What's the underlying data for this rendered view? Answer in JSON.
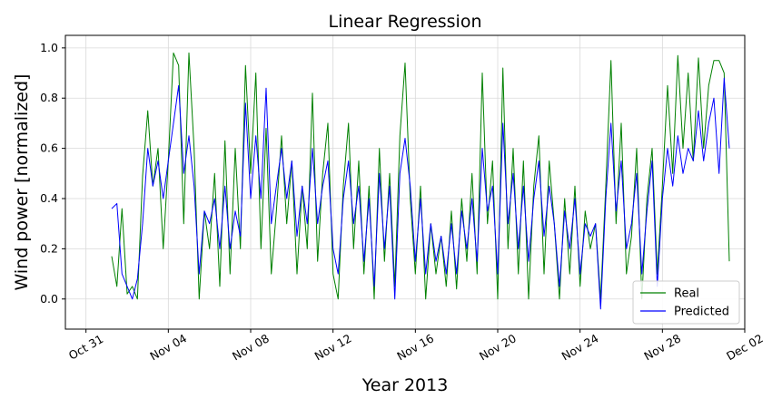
{
  "chart_data": {
    "type": "line",
    "title": "Linear Regression",
    "xlabel": "Year 2013",
    "ylabel": "Wind power [normalized]",
    "xlim": [
      "2013-10-30T00:00",
      "2013-12-02T00:00"
    ],
    "ylim": [
      -0.12,
      1.05
    ],
    "grid": true,
    "legend_position": "bottom-right",
    "x_ticks": [
      {
        "date": "2013-10-31",
        "label": "Oct 31"
      },
      {
        "date": "2013-11-04",
        "label": "Nov 04"
      },
      {
        "date": "2013-11-08",
        "label": "Nov 08"
      },
      {
        "date": "2013-11-12",
        "label": "Nov 12"
      },
      {
        "date": "2013-11-16",
        "label": "Nov 16"
      },
      {
        "date": "2013-11-20",
        "label": "Nov 20"
      },
      {
        "date": "2013-11-24",
        "label": "Nov 24"
      },
      {
        "date": "2013-11-28",
        "label": "Nov 28"
      },
      {
        "date": "2013-12-02",
        "label": "Dec 02"
      }
    ],
    "y_ticks": [
      {
        "value": 0.0,
        "label": "0.0"
      },
      {
        "value": 0.2,
        "label": "0.2"
      },
      {
        "value": 0.4,
        "label": "0.4"
      },
      {
        "value": 0.6,
        "label": "0.6"
      },
      {
        "value": 0.8,
        "label": "0.8"
      },
      {
        "value": 1.0,
        "label": "1.0"
      }
    ],
    "series": [
      {
        "name": "Real",
        "color": "#008000",
        "points": [
          [
            "2013-11-01T06:00",
            0.17
          ],
          [
            "2013-11-01T12:00",
            0.05
          ],
          [
            "2013-11-01T18:00",
            0.36
          ],
          [
            "2013-11-02T00:00",
            0.02
          ],
          [
            "2013-11-02T06:00",
            0.05
          ],
          [
            "2013-11-02T12:00",
            0.0
          ],
          [
            "2013-11-02T18:00",
            0.49
          ],
          [
            "2013-11-03T00:00",
            0.75
          ],
          [
            "2013-11-03T06:00",
            0.45
          ],
          [
            "2013-11-03T12:00",
            0.6
          ],
          [
            "2013-11-03T18:00",
            0.2
          ],
          [
            "2013-11-04T00:00",
            0.55
          ],
          [
            "2013-11-04T06:00",
            0.98
          ],
          [
            "2013-11-04T12:00",
            0.93
          ],
          [
            "2013-11-04T18:00",
            0.3
          ],
          [
            "2013-11-05T00:00",
            0.98
          ],
          [
            "2013-11-05T06:00",
            0.6
          ],
          [
            "2013-11-05T12:00",
            0.0
          ],
          [
            "2013-11-05T18:00",
            0.35
          ],
          [
            "2013-11-06T00:00",
            0.2
          ],
          [
            "2013-11-06T06:00",
            0.5
          ],
          [
            "2013-11-06T12:00",
            0.05
          ],
          [
            "2013-11-06T18:00",
            0.63
          ],
          [
            "2013-11-07T00:00",
            0.1
          ],
          [
            "2013-11-07T06:00",
            0.6
          ],
          [
            "2013-11-07T12:00",
            0.2
          ],
          [
            "2013-11-07T18:00",
            0.93
          ],
          [
            "2013-11-08T00:00",
            0.5
          ],
          [
            "2013-11-08T06:00",
            0.9
          ],
          [
            "2013-11-08T12:00",
            0.2
          ],
          [
            "2013-11-08T18:00",
            0.68
          ],
          [
            "2013-11-09T00:00",
            0.1
          ],
          [
            "2013-11-09T06:00",
            0.35
          ],
          [
            "2013-11-09T12:00",
            0.65
          ],
          [
            "2013-11-09T18:00",
            0.3
          ],
          [
            "2013-11-10T00:00",
            0.55
          ],
          [
            "2013-11-10T06:00",
            0.1
          ],
          [
            "2013-11-10T12:00",
            0.45
          ],
          [
            "2013-11-10T18:00",
            0.2
          ],
          [
            "2013-11-11T00:00",
            0.82
          ],
          [
            "2013-11-11T06:00",
            0.15
          ],
          [
            "2013-11-11T12:00",
            0.5
          ],
          [
            "2013-11-11T18:00",
            0.7
          ],
          [
            "2013-11-12T00:00",
            0.1
          ],
          [
            "2013-11-12T06:00",
            0.0
          ],
          [
            "2013-11-12T12:00",
            0.45
          ],
          [
            "2013-11-12T18:00",
            0.7
          ],
          [
            "2013-11-13T00:00",
            0.2
          ],
          [
            "2013-11-13T06:00",
            0.55
          ],
          [
            "2013-11-13T12:00",
            0.1
          ],
          [
            "2013-11-13T18:00",
            0.45
          ],
          [
            "2013-11-14T00:00",
            0.0
          ],
          [
            "2013-11-14T06:00",
            0.6
          ],
          [
            "2013-11-14T12:00",
            0.15
          ],
          [
            "2013-11-14T18:00",
            0.5
          ],
          [
            "2013-11-15T00:00",
            0.05
          ],
          [
            "2013-11-15T06:00",
            0.65
          ],
          [
            "2013-11-15T12:00",
            0.94
          ],
          [
            "2013-11-15T18:00",
            0.4
          ],
          [
            "2013-11-16T00:00",
            0.1
          ],
          [
            "2013-11-16T06:00",
            0.45
          ],
          [
            "2013-11-16T12:00",
            0.0
          ],
          [
            "2013-11-16T18:00",
            0.3
          ],
          [
            "2013-11-17T00:00",
            0.1
          ],
          [
            "2013-11-17T06:00",
            0.25
          ],
          [
            "2013-11-17T12:00",
            0.05
          ],
          [
            "2013-11-17T18:00",
            0.35
          ],
          [
            "2013-11-18T00:00",
            0.04
          ],
          [
            "2013-11-18T06:00",
            0.4
          ],
          [
            "2013-11-18T12:00",
            0.15
          ],
          [
            "2013-11-18T18:00",
            0.5
          ],
          [
            "2013-11-19T00:00",
            0.1
          ],
          [
            "2013-11-19T06:00",
            0.9
          ],
          [
            "2013-11-19T12:00",
            0.3
          ],
          [
            "2013-11-19T18:00",
            0.55
          ],
          [
            "2013-11-20T00:00",
            0.0
          ],
          [
            "2013-11-20T06:00",
            0.92
          ],
          [
            "2013-11-20T12:00",
            0.2
          ],
          [
            "2013-11-20T18:00",
            0.6
          ],
          [
            "2013-11-21T00:00",
            0.1
          ],
          [
            "2013-11-21T06:00",
            0.55
          ],
          [
            "2013-11-21T12:00",
            0.0
          ],
          [
            "2013-11-21T18:00",
            0.45
          ],
          [
            "2013-11-22T00:00",
            0.65
          ],
          [
            "2013-11-22T06:00",
            0.1
          ],
          [
            "2013-11-22T12:00",
            0.55
          ],
          [
            "2013-11-22T18:00",
            0.3
          ],
          [
            "2013-11-23T00:00",
            0.0
          ],
          [
            "2013-11-23T06:00",
            0.4
          ],
          [
            "2013-11-23T12:00",
            0.1
          ],
          [
            "2013-11-23T18:00",
            0.45
          ],
          [
            "2013-11-24T00:00",
            0.05
          ],
          [
            "2013-11-24T06:00",
            0.35
          ],
          [
            "2013-11-24T12:00",
            0.2
          ],
          [
            "2013-11-24T18:00",
            0.3
          ],
          [
            "2013-11-25T00:00",
            0.0
          ],
          [
            "2013-11-25T06:00",
            0.45
          ],
          [
            "2013-11-25T12:00",
            0.95
          ],
          [
            "2013-11-25T18:00",
            0.3
          ],
          [
            "2013-11-26T00:00",
            0.7
          ],
          [
            "2013-11-26T06:00",
            0.1
          ],
          [
            "2013-11-26T12:00",
            0.25
          ],
          [
            "2013-11-26T18:00",
            0.6
          ],
          [
            "2013-11-27T00:00",
            0.0
          ],
          [
            "2013-11-27T06:00",
            0.4
          ],
          [
            "2013-11-27T12:00",
            0.6
          ],
          [
            "2013-11-27T18:00",
            0.1
          ],
          [
            "2013-11-28T00:00",
            0.45
          ],
          [
            "2013-11-28T06:00",
            0.85
          ],
          [
            "2013-11-28T12:00",
            0.5
          ],
          [
            "2013-11-28T18:00",
            0.97
          ],
          [
            "2013-11-29T00:00",
            0.6
          ],
          [
            "2013-11-29T06:00",
            0.9
          ],
          [
            "2013-11-29T12:00",
            0.55
          ],
          [
            "2013-11-29T18:00",
            0.96
          ],
          [
            "2013-11-30T00:00",
            0.6
          ],
          [
            "2013-11-30T06:00",
            0.85
          ],
          [
            "2013-11-30T12:00",
            0.95
          ],
          [
            "2013-11-30T18:00",
            0.95
          ],
          [
            "2013-12-01T00:00",
            0.9
          ],
          [
            "2013-12-01T06:00",
            0.15
          ]
        ]
      },
      {
        "name": "Predicted",
        "color": "#0000ff",
        "points": [
          [
            "2013-11-01T06:00",
            0.36
          ],
          [
            "2013-11-01T12:00",
            0.38
          ],
          [
            "2013-11-01T18:00",
            0.1
          ],
          [
            "2013-11-02T00:00",
            0.05
          ],
          [
            "2013-11-02T06:00",
            0.0
          ],
          [
            "2013-11-02T12:00",
            0.08
          ],
          [
            "2013-11-02T18:00",
            0.3
          ],
          [
            "2013-11-03T00:00",
            0.6
          ],
          [
            "2013-11-03T06:00",
            0.45
          ],
          [
            "2013-11-03T12:00",
            0.55
          ],
          [
            "2013-11-03T18:00",
            0.4
          ],
          [
            "2013-11-04T00:00",
            0.55
          ],
          [
            "2013-11-04T06:00",
            0.7
          ],
          [
            "2013-11-04T12:00",
            0.85
          ],
          [
            "2013-11-04T18:00",
            0.5
          ],
          [
            "2013-11-05T00:00",
            0.65
          ],
          [
            "2013-11-05T06:00",
            0.45
          ],
          [
            "2013-11-05T12:00",
            0.1
          ],
          [
            "2013-11-05T18:00",
            0.35
          ],
          [
            "2013-11-06T00:00",
            0.3
          ],
          [
            "2013-11-06T06:00",
            0.4
          ],
          [
            "2013-11-06T12:00",
            0.2
          ],
          [
            "2013-11-06T18:00",
            0.45
          ],
          [
            "2013-11-07T00:00",
            0.2
          ],
          [
            "2013-11-07T06:00",
            0.35
          ],
          [
            "2013-11-07T12:00",
            0.25
          ],
          [
            "2013-11-07T18:00",
            0.78
          ],
          [
            "2013-11-08T00:00",
            0.4
          ],
          [
            "2013-11-08T06:00",
            0.65
          ],
          [
            "2013-11-08T12:00",
            0.4
          ],
          [
            "2013-11-08T18:00",
            0.84
          ],
          [
            "2013-11-09T00:00",
            0.3
          ],
          [
            "2013-11-09T06:00",
            0.45
          ],
          [
            "2013-11-09T12:00",
            0.6
          ],
          [
            "2013-11-09T18:00",
            0.4
          ],
          [
            "2013-11-10T00:00",
            0.55
          ],
          [
            "2013-11-10T06:00",
            0.25
          ],
          [
            "2013-11-10T12:00",
            0.45
          ],
          [
            "2013-11-10T18:00",
            0.3
          ],
          [
            "2013-11-11T00:00",
            0.6
          ],
          [
            "2013-11-11T06:00",
            0.3
          ],
          [
            "2013-11-11T12:00",
            0.45
          ],
          [
            "2013-11-11T18:00",
            0.55
          ],
          [
            "2013-11-12T00:00",
            0.2
          ],
          [
            "2013-11-12T06:00",
            0.1
          ],
          [
            "2013-11-12T12:00",
            0.4
          ],
          [
            "2013-11-12T18:00",
            0.55
          ],
          [
            "2013-11-13T00:00",
            0.3
          ],
          [
            "2013-11-13T06:00",
            0.45
          ],
          [
            "2013-11-13T12:00",
            0.15
          ],
          [
            "2013-11-13T18:00",
            0.4
          ],
          [
            "2013-11-14T00:00",
            0.05
          ],
          [
            "2013-11-14T06:00",
            0.5
          ],
          [
            "2013-11-14T12:00",
            0.2
          ],
          [
            "2013-11-14T18:00",
            0.45
          ],
          [
            "2013-11-15T00:00",
            0.0
          ],
          [
            "2013-11-15T06:00",
            0.5
          ],
          [
            "2013-11-15T12:00",
            0.64
          ],
          [
            "2013-11-15T18:00",
            0.45
          ],
          [
            "2013-11-16T00:00",
            0.15
          ],
          [
            "2013-11-16T06:00",
            0.4
          ],
          [
            "2013-11-16T12:00",
            0.1
          ],
          [
            "2013-11-16T18:00",
            0.3
          ],
          [
            "2013-11-17T00:00",
            0.15
          ],
          [
            "2013-11-17T06:00",
            0.25
          ],
          [
            "2013-11-17T12:00",
            0.1
          ],
          [
            "2013-11-17T18:00",
            0.3
          ],
          [
            "2013-11-18T00:00",
            0.1
          ],
          [
            "2013-11-18T06:00",
            0.35
          ],
          [
            "2013-11-18T12:00",
            0.2
          ],
          [
            "2013-11-18T18:00",
            0.4
          ],
          [
            "2013-11-19T00:00",
            0.15
          ],
          [
            "2013-11-19T06:00",
            0.6
          ],
          [
            "2013-11-19T12:00",
            0.35
          ],
          [
            "2013-11-19T18:00",
            0.45
          ],
          [
            "2013-11-20T00:00",
            0.1
          ],
          [
            "2013-11-20T06:00",
            0.7
          ],
          [
            "2013-11-20T12:00",
            0.3
          ],
          [
            "2013-11-20T18:00",
            0.5
          ],
          [
            "2013-11-21T00:00",
            0.2
          ],
          [
            "2013-11-21T06:00",
            0.45
          ],
          [
            "2013-11-21T12:00",
            0.15
          ],
          [
            "2013-11-21T18:00",
            0.4
          ],
          [
            "2013-11-22T00:00",
            0.55
          ],
          [
            "2013-11-22T06:00",
            0.25
          ],
          [
            "2013-11-22T12:00",
            0.45
          ],
          [
            "2013-11-22T18:00",
            0.3
          ],
          [
            "2013-11-23T00:00",
            0.05
          ],
          [
            "2013-11-23T06:00",
            0.35
          ],
          [
            "2013-11-23T12:00",
            0.2
          ],
          [
            "2013-11-23T18:00",
            0.4
          ],
          [
            "2013-11-24T00:00",
            0.1
          ],
          [
            "2013-11-24T06:00",
            0.3
          ],
          [
            "2013-11-24T12:00",
            0.25
          ],
          [
            "2013-11-24T18:00",
            0.3
          ],
          [
            "2013-11-25T00:00",
            -0.04
          ],
          [
            "2013-11-25T06:00",
            0.4
          ],
          [
            "2013-11-25T12:00",
            0.7
          ],
          [
            "2013-11-25T18:00",
            0.35
          ],
          [
            "2013-11-26T00:00",
            0.55
          ],
          [
            "2013-11-26T06:00",
            0.2
          ],
          [
            "2013-11-26T12:00",
            0.3
          ],
          [
            "2013-11-26T18:00",
            0.5
          ],
          [
            "2013-11-27T00:00",
            0.1
          ],
          [
            "2013-11-27T06:00",
            0.35
          ],
          [
            "2013-11-27T12:00",
            0.55
          ],
          [
            "2013-11-27T18:00",
            0.05
          ],
          [
            "2013-11-28T00:00",
            0.4
          ],
          [
            "2013-11-28T06:00",
            0.6
          ],
          [
            "2013-11-28T12:00",
            0.45
          ],
          [
            "2013-11-28T18:00",
            0.65
          ],
          [
            "2013-11-29T00:00",
            0.5
          ],
          [
            "2013-11-29T06:00",
            0.6
          ],
          [
            "2013-11-29T12:00",
            0.55
          ],
          [
            "2013-11-29T18:00",
            0.75
          ],
          [
            "2013-11-30T00:00",
            0.55
          ],
          [
            "2013-11-30T06:00",
            0.7
          ],
          [
            "2013-11-30T12:00",
            0.8
          ],
          [
            "2013-11-30T18:00",
            0.5
          ],
          [
            "2013-12-01T00:00",
            0.88
          ],
          [
            "2013-12-01T06:00",
            0.6
          ]
        ]
      }
    ]
  }
}
